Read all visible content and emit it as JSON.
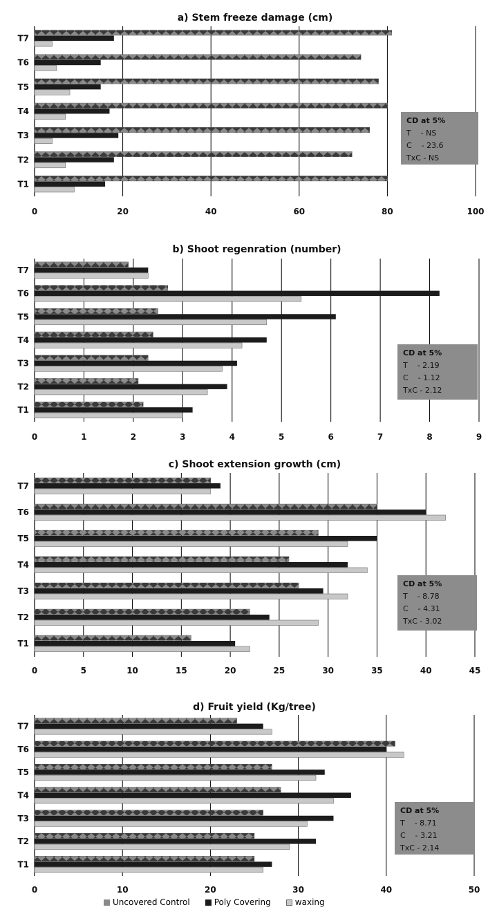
{
  "legend": {
    "items": [
      "Uncovered Control",
      "Poly Covering",
      "waxing"
    ]
  },
  "chart_data": [
    {
      "type": "bar",
      "orientation": "horizontal",
      "title": "a) Stem freeze damage (cm)",
      "categories": [
        "T1",
        "T2",
        "T3",
        "T4",
        "T5",
        "T6",
        "T7"
      ],
      "xlim": [
        0,
        100
      ],
      "ticks": [
        0,
        20,
        40,
        60,
        80,
        100
      ],
      "series": [
        {
          "name": "Uncovered Control",
          "values": [
            80,
            72,
            76,
            80,
            78,
            74,
            81
          ]
        },
        {
          "name": "Poly Covering",
          "values": [
            16,
            18,
            19,
            17,
            15,
            15,
            18
          ]
        },
        {
          "name": "waxing",
          "values": [
            9,
            7,
            4,
            7,
            8,
            5,
            4
          ]
        }
      ],
      "cd": {
        "heading": "CD at 5%",
        "lines": [
          "T    - NS",
          "C    - 23.6",
          "TxC - NS"
        ]
      }
    },
    {
      "type": "bar",
      "orientation": "horizontal",
      "title": "b) Shoot regenration (number)",
      "categories": [
        "T1",
        "T2",
        "T3",
        "T4",
        "T5",
        "T6",
        "T7"
      ],
      "xlim": [
        0,
        9
      ],
      "ticks": [
        0,
        1,
        2,
        3,
        4,
        5,
        6,
        7,
        8,
        9
      ],
      "series": [
        {
          "name": "Uncovered Control",
          "values": [
            2.2,
            2.1,
            2.3,
            2.4,
            2.5,
            2.7,
            1.9
          ]
        },
        {
          "name": "Poly Covering",
          "values": [
            3.2,
            3.9,
            4.1,
            4.7,
            6.1,
            8.2,
            2.3
          ]
        },
        {
          "name": "waxing",
          "values": [
            3.0,
            3.5,
            3.8,
            4.2,
            4.7,
            5.4,
            2.3
          ]
        }
      ],
      "cd": {
        "heading": "CD at 5%",
        "lines": [
          "T    - 2.19",
          "C    - 1.12",
          "TxC - 2.12"
        ]
      }
    },
    {
      "type": "bar",
      "orientation": "horizontal",
      "title": "c) Shoot extension growth (cm)",
      "categories": [
        "T1",
        "T2",
        "T3",
        "T4",
        "T5",
        "T6",
        "T7"
      ],
      "xlim": [
        0,
        45
      ],
      "ticks": [
        0,
        5,
        10,
        15,
        20,
        25,
        30,
        35,
        40,
        45
      ],
      "series": [
        {
          "name": "Uncovered Control",
          "values": [
            16,
            22,
            27,
            26,
            29,
            35,
            18
          ]
        },
        {
          "name": "Poly Covering",
          "values": [
            20.5,
            24,
            29.5,
            32,
            35,
            40,
            19
          ]
        },
        {
          "name": "waxing",
          "values": [
            22,
            29,
            32,
            34,
            32,
            42,
            18
          ]
        }
      ],
      "cd": {
        "heading": "CD at 5%",
        "lines": [
          "T    - 8.78",
          "C    - 4.31",
          "TxC - 3.02"
        ]
      }
    },
    {
      "type": "bar",
      "orientation": "horizontal",
      "title": "d) Fruit yield (Kg/tree)",
      "categories": [
        "T1",
        "T2",
        "T3",
        "T4",
        "T5",
        "T6",
        "T7"
      ],
      "xlim": [
        0,
        50
      ],
      "ticks": [
        0,
        10,
        20,
        30,
        40,
        50
      ],
      "series": [
        {
          "name": "Uncovered Control",
          "values": [
            25,
            25,
            26,
            28,
            27,
            41,
            23
          ]
        },
        {
          "name": "Poly Covering",
          "values": [
            27,
            32,
            34,
            36,
            33,
            40,
            26
          ]
        },
        {
          "name": "waxing",
          "values": [
            26,
            29,
            31,
            34,
            32,
            42,
            27
          ]
        }
      ],
      "cd": {
        "heading": "CD at 5%",
        "lines": [
          "T    - 8.71",
          "C    - 3.21",
          "TxC - 2.14"
        ]
      }
    }
  ],
  "colors": {
    "uncovered_control": "#8a8a8a",
    "uncovered_pattern": "#3a3a3a",
    "poly_covering": "#1c1c1c",
    "waxing": "#c8c8c8",
    "waxing_border": "#6a6a6a",
    "cd_box": "#8c8c8c",
    "gridline": "#000000"
  }
}
